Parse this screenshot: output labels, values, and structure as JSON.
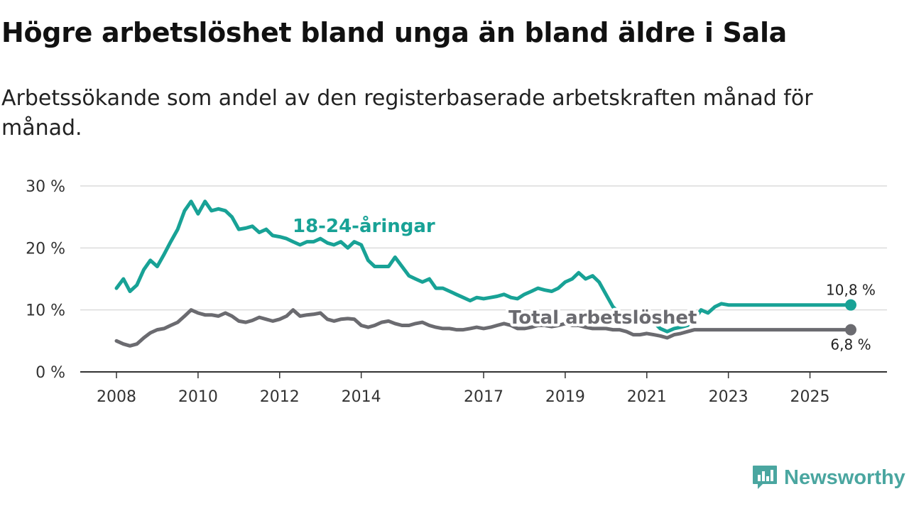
{
  "header": {
    "title": "Högre arbetslöshet bland unga än bland äldre i Sala",
    "subtitle": "Arbetssökande som andel av den registerbaserade arbetskraften månad för månad."
  },
  "brand": {
    "name": "Newsworthy",
    "icon": "newsworthy-logo-icon",
    "color": "#4aa6a0"
  },
  "chart_data": {
    "type": "line",
    "title": "Högre arbetslöshet bland unga än bland äldre i Sala",
    "subtitle": "Arbetssökande som andel av den registerbaserade arbetskraften månad för månad.",
    "xlabel": "",
    "ylabel": "",
    "ylim": [
      0,
      30
    ],
    "xlim": [
      2008,
      2026.5
    ],
    "grid": true,
    "yticks": [
      0,
      10,
      20,
      30
    ],
    "ytick_labels": [
      "0 %",
      "10 %",
      "20 %",
      "30 %"
    ],
    "xticks": [
      2008,
      2010,
      2012,
      2014,
      2017,
      2019,
      2021,
      2023,
      2025
    ],
    "xtick_labels": [
      "2008",
      "2010",
      "2012",
      "2014",
      "2017",
      "2019",
      "2021",
      "2023",
      "2025"
    ],
    "series": [
      {
        "name": "18-24-åringar",
        "color": "#18a296",
        "end_label": "10,8 %",
        "x": [
          2008.0,
          2008.17,
          2008.33,
          2008.5,
          2008.67,
          2008.83,
          2009.0,
          2009.17,
          2009.33,
          2009.5,
          2009.67,
          2009.83,
          2010.0,
          2010.17,
          2010.33,
          2010.5,
          2010.67,
          2010.83,
          2011.0,
          2011.17,
          2011.33,
          2011.5,
          2011.67,
          2011.83,
          2012.0,
          2012.17,
          2012.33,
          2012.5,
          2012.67,
          2012.83,
          2013.0,
          2013.17,
          2013.33,
          2013.5,
          2013.67,
          2013.83,
          2014.0,
          2014.17,
          2014.33,
          2014.5,
          2014.67,
          2014.83,
          2015.0,
          2015.17,
          2015.33,
          2015.5,
          2015.67,
          2015.83,
          2016.0,
          2016.17,
          2016.33,
          2016.5,
          2016.67,
          2016.83,
          2017.0,
          2017.17,
          2017.33,
          2017.5,
          2017.67,
          2017.83,
          2018.0,
          2018.17,
          2018.33,
          2018.5,
          2018.67,
          2018.83,
          2019.0,
          2019.17,
          2019.33,
          2019.5,
          2019.67,
          2019.83,
          2020.0,
          2020.17,
          2020.33,
          2020.5,
          2020.67,
          2020.83,
          2021.0,
          2021.17,
          2021.33,
          2021.5,
          2021.67,
          2021.83,
          2022.0,
          2022.17,
          2022.33,
          2022.5,
          2022.67,
          2022.83,
          2023.0,
          2023.17,
          2023.33,
          2023.5,
          2023.67,
          2023.83,
          2024.0,
          2024.17,
          2024.33,
          2024.5,
          2024.67,
          2024.83,
          2025.0,
          2025.17,
          2025.33,
          2025.5,
          2025.67,
          2025.83,
          2026.0
        ],
        "values": [
          13.5,
          15.0,
          13.0,
          14.0,
          16.5,
          18.0,
          17.0,
          19.0,
          21.0,
          23.0,
          26.0,
          27.5,
          25.5,
          27.5,
          26.0,
          26.3,
          26.0,
          25.0,
          23.0,
          23.2,
          23.5,
          22.5,
          23.0,
          22.0,
          21.8,
          21.5,
          21.0,
          20.5,
          21.0,
          21.0,
          21.5,
          20.8,
          20.5,
          21.0,
          20.0,
          21.0,
          20.5,
          18.0,
          17.0,
          17.0,
          17.0,
          18.5,
          17.0,
          15.5,
          15.0,
          14.5,
          15.0,
          13.5,
          13.5,
          13.0,
          12.5,
          12.0,
          11.5,
          12.0,
          11.8,
          12.0,
          12.2,
          12.5,
          12.0,
          11.8,
          12.5,
          13.0,
          13.5,
          13.2,
          13.0,
          13.5,
          14.5,
          15.0,
          16.0,
          15.0,
          15.5,
          14.5,
          12.5,
          10.5,
          9.5,
          9.0,
          9.0,
          8.5,
          9.0,
          8.0,
          7.0,
          6.5,
          7.0,
          7.2,
          7.5,
          8.5,
          10.0,
          9.5,
          10.5,
          11.0,
          10.8,
          10.8,
          10.8,
          10.8,
          10.8,
          10.8,
          10.8,
          10.8,
          10.8,
          10.8,
          10.8,
          10.8,
          10.8,
          10.8,
          10.8,
          10.8,
          10.8,
          10.8,
          10.8
        ]
      },
      {
        "name": "Total arbetslöshet",
        "color": "#6b6b70",
        "end_label": "6,8 %",
        "x": [
          2008.0,
          2008.17,
          2008.33,
          2008.5,
          2008.67,
          2008.83,
          2009.0,
          2009.17,
          2009.33,
          2009.5,
          2009.67,
          2009.83,
          2010.0,
          2010.17,
          2010.33,
          2010.5,
          2010.67,
          2010.83,
          2011.0,
          2011.17,
          2011.33,
          2011.5,
          2011.67,
          2011.83,
          2012.0,
          2012.17,
          2012.33,
          2012.5,
          2012.67,
          2012.83,
          2013.0,
          2013.17,
          2013.33,
          2013.5,
          2013.67,
          2013.83,
          2014.0,
          2014.17,
          2014.33,
          2014.5,
          2014.67,
          2014.83,
          2015.0,
          2015.17,
          2015.33,
          2015.5,
          2015.67,
          2015.83,
          2016.0,
          2016.17,
          2016.33,
          2016.5,
          2016.67,
          2016.83,
          2017.0,
          2017.17,
          2017.33,
          2017.5,
          2017.67,
          2017.83,
          2018.0,
          2018.17,
          2018.33,
          2018.5,
          2018.67,
          2018.83,
          2019.0,
          2019.17,
          2019.33,
          2019.5,
          2019.67,
          2019.83,
          2020.0,
          2020.17,
          2020.33,
          2020.5,
          2020.67,
          2020.83,
          2021.0,
          2021.17,
          2021.33,
          2021.5,
          2021.67,
          2021.83,
          2022.0,
          2022.17,
          2022.33,
          2022.5,
          2022.67,
          2022.83,
          2023.0,
          2023.17,
          2023.33,
          2023.5,
          2023.67,
          2023.83,
          2024.0,
          2024.17,
          2024.33,
          2024.5,
          2024.67,
          2024.83,
          2025.0,
          2025.17,
          2025.33,
          2025.5,
          2025.67,
          2025.83,
          2026.0
        ],
        "values": [
          5.0,
          4.5,
          4.2,
          4.5,
          5.5,
          6.3,
          6.8,
          7.0,
          7.5,
          8.0,
          9.0,
          10.0,
          9.5,
          9.2,
          9.2,
          9.0,
          9.5,
          9.0,
          8.2,
          8.0,
          8.3,
          8.8,
          8.5,
          8.2,
          8.5,
          9.0,
          10.0,
          9.0,
          9.2,
          9.3,
          9.5,
          8.5,
          8.2,
          8.5,
          8.6,
          8.5,
          7.5,
          7.2,
          7.5,
          8.0,
          8.2,
          7.8,
          7.5,
          7.5,
          7.8,
          8.0,
          7.5,
          7.2,
          7.0,
          7.0,
          6.8,
          6.8,
          7.0,
          7.2,
          7.0,
          7.2,
          7.5,
          7.8,
          7.5,
          7.0,
          7.0,
          7.2,
          7.5,
          7.5,
          7.3,
          7.5,
          7.8,
          7.5,
          7.5,
          7.2,
          7.0,
          7.0,
          7.0,
          6.8,
          6.8,
          6.5,
          6.0,
          6.0,
          6.2,
          6.0,
          5.8,
          5.5,
          6.0,
          6.2,
          6.5,
          6.8,
          6.8,
          6.8,
          6.8,
          6.8,
          6.8,
          6.8,
          6.8,
          6.8,
          6.8,
          6.8,
          6.8,
          6.8,
          6.8,
          6.8,
          6.8,
          6.8,
          6.8,
          6.8,
          6.8,
          6.8,
          6.8,
          6.8,
          6.8
        ]
      }
    ]
  }
}
